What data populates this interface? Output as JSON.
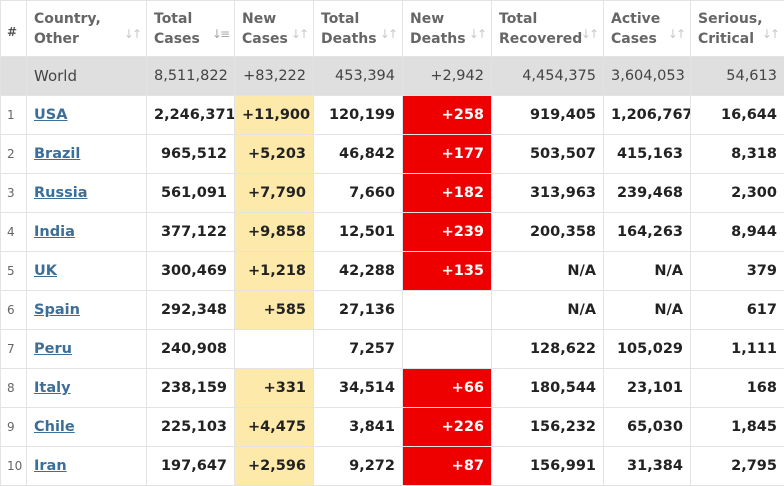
{
  "headers": [
    {
      "line1": "#",
      "line2": ""
    },
    {
      "line1": "Country,",
      "line2": "Other"
    },
    {
      "line1": "Total",
      "line2": "Cases"
    },
    {
      "line1": "New",
      "line2": "Cases"
    },
    {
      "line1": "Total",
      "line2": "Deaths"
    },
    {
      "line1": "New",
      "line2": "Deaths"
    },
    {
      "line1": "Total",
      "line2": "Recovered"
    },
    {
      "line1": "Active",
      "line2": "Cases"
    },
    {
      "line1": "Serious,",
      "line2": "Critical"
    }
  ],
  "colors": {
    "new_cases_highlight": "#fde9a9",
    "new_deaths_highlight": "#ee0000",
    "world_row_bg": "#dfdfdf",
    "country_link": "#3c6e98"
  },
  "world": {
    "country": "World",
    "total_cases": "8,511,822",
    "new_cases": "+83,222",
    "total_deaths": "453,394",
    "new_deaths": "+2,942",
    "total_recovered": "4,454,375",
    "active_cases": "3,604,053",
    "serious_critical": "54,613"
  },
  "rows": [
    {
      "num": "1",
      "country": "USA",
      "total_cases": "2,246,371",
      "new_cases": "+11,900",
      "total_deaths": "120,199",
      "new_deaths": "+258",
      "total_recovered": "919,405",
      "active_cases": "1,206,767",
      "serious_critical": "16,644"
    },
    {
      "num": "2",
      "country": "Brazil",
      "total_cases": "965,512",
      "new_cases": "+5,203",
      "total_deaths": "46,842",
      "new_deaths": "+177",
      "total_recovered": "503,507",
      "active_cases": "415,163",
      "serious_critical": "8,318"
    },
    {
      "num": "3",
      "country": "Russia",
      "total_cases": "561,091",
      "new_cases": "+7,790",
      "total_deaths": "7,660",
      "new_deaths": "+182",
      "total_recovered": "313,963",
      "active_cases": "239,468",
      "serious_critical": "2,300"
    },
    {
      "num": "4",
      "country": "India",
      "total_cases": "377,122",
      "new_cases": "+9,858",
      "total_deaths": "12,501",
      "new_deaths": "+239",
      "total_recovered": "200,358",
      "active_cases": "164,263",
      "serious_critical": "8,944"
    },
    {
      "num": "5",
      "country": "UK",
      "total_cases": "300,469",
      "new_cases": "+1,218",
      "total_deaths": "42,288",
      "new_deaths": "+135",
      "total_recovered": "N/A",
      "active_cases": "N/A",
      "serious_critical": "379"
    },
    {
      "num": "6",
      "country": "Spain",
      "total_cases": "292,348",
      "new_cases": "+585",
      "total_deaths": "27,136",
      "new_deaths": "",
      "total_recovered": "N/A",
      "active_cases": "N/A",
      "serious_critical": "617"
    },
    {
      "num": "7",
      "country": "Peru",
      "total_cases": "240,908",
      "new_cases": "",
      "total_deaths": "7,257",
      "new_deaths": "",
      "total_recovered": "128,622",
      "active_cases": "105,029",
      "serious_critical": "1,111"
    },
    {
      "num": "8",
      "country": "Italy",
      "total_cases": "238,159",
      "new_cases": "+331",
      "total_deaths": "34,514",
      "new_deaths": "+66",
      "total_recovered": "180,544",
      "active_cases": "23,101",
      "serious_critical": "168"
    },
    {
      "num": "9",
      "country": "Chile",
      "total_cases": "225,103",
      "new_cases": "+4,475",
      "total_deaths": "3,841",
      "new_deaths": "+226",
      "total_recovered": "156,232",
      "active_cases": "65,030",
      "serious_critical": "1,845"
    },
    {
      "num": "10",
      "country": "Iran",
      "total_cases": "197,647",
      "new_cases": "+2,596",
      "total_deaths": "9,272",
      "new_deaths": "+87",
      "total_recovered": "156,991",
      "active_cases": "31,384",
      "serious_critical": "2,795"
    }
  ]
}
